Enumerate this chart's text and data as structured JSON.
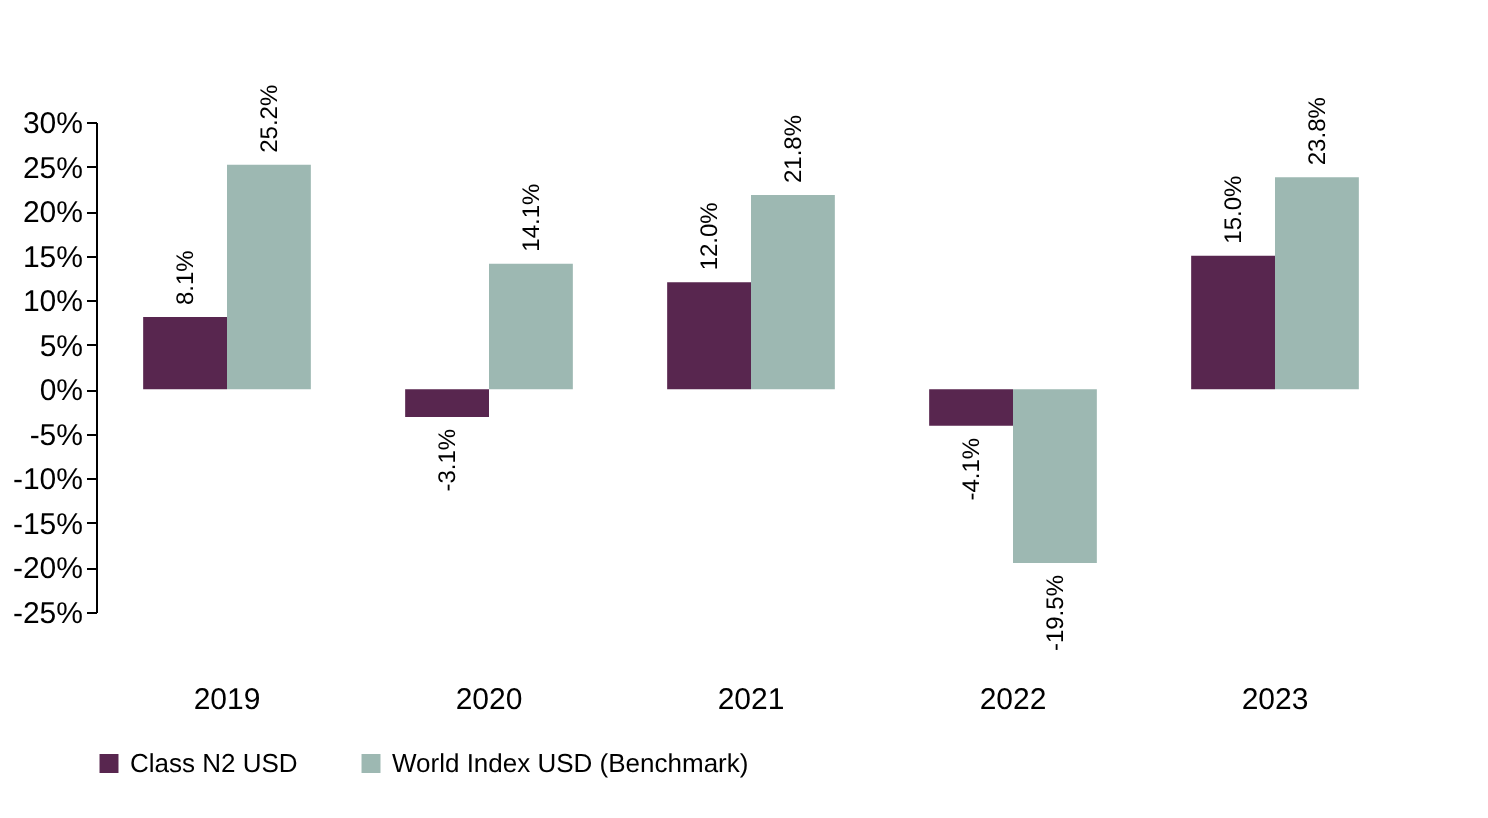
{
  "chart_data": {
    "type": "bar",
    "categories": [
      "2019",
      "2020",
      "2021",
      "2022",
      "2023"
    ],
    "series": [
      {
        "name": "Class N2 USD",
        "color": "#58264f",
        "values": [
          8.1,
          -3.1,
          12.0,
          -4.1,
          15.0
        ],
        "value_labels": [
          "8.1%",
          "-3.1%",
          "12.0%",
          "-4.1%",
          "15.0%"
        ]
      },
      {
        "name": "World Index USD (Benchmark)",
        "color": "#9db8b2",
        "values": [
          25.2,
          14.1,
          21.8,
          -19.5,
          23.8
        ],
        "value_labels": [
          "25.2%",
          "14.1%",
          "21.8%",
          "-19.5%",
          "23.8%"
        ]
      }
    ],
    "ylim": [
      -25,
      30
    ],
    "yticks": [
      {
        "value": -25,
        "label": "-25%"
      },
      {
        "value": -20,
        "label": "-20%"
      },
      {
        "value": -15,
        "label": "-15%"
      },
      {
        "value": -10,
        "label": "-10%"
      },
      {
        "value": -5,
        "label": "-5%"
      },
      {
        "value": 0,
        "label": "0%"
      },
      {
        "value": 5,
        "label": "5%"
      },
      {
        "value": 10,
        "label": "10%"
      },
      {
        "value": 15,
        "label": "15%"
      },
      {
        "value": 20,
        "label": "20%"
      },
      {
        "value": 25,
        "label": "25%"
      },
      {
        "value": 30,
        "label": "30%"
      }
    ],
    "grid": false,
    "legend": "bottom"
  }
}
